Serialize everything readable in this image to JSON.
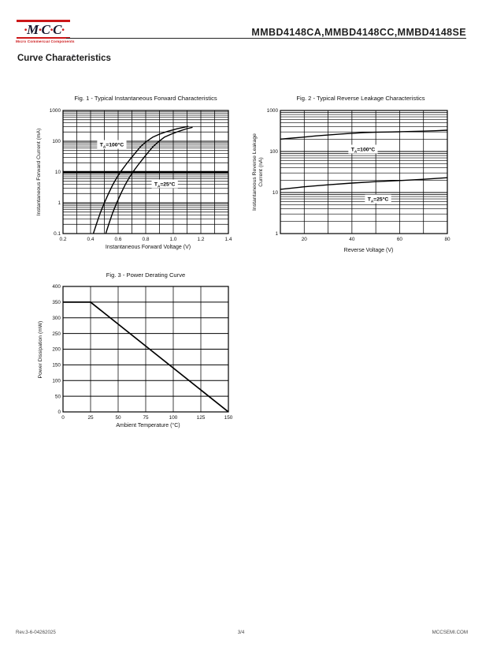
{
  "header": {
    "logo_text": "·M·C·C·",
    "logo_subtitle": "Micro Commercial Components",
    "registered_mark": "®",
    "part_numbers": "MMBD4148CA,MMBD4148CC,MMBD4148SE"
  },
  "section_title": "Curve Characteristics",
  "footer": {
    "revision": "Rev.3-6-04262025",
    "page": "3/4",
    "website": "MCCSEMI.COM"
  },
  "colors": {
    "brand_red": "#cc1719",
    "logo_letters": "#17172e",
    "chart_line": "#000000"
  },
  "chart_data": [
    {
      "id": "fig1",
      "type": "line",
      "title": "Fig. 1 - Typical Instantaneous Forward Characteristics",
      "xlabel": "Instantaneous Forward Voltage (V)",
      "ylabel": "Instantaneous Forward Current (mA)",
      "xscale": "linear",
      "yscale": "log",
      "xlim": [
        0.2,
        1.4
      ],
      "ylim": [
        0.1,
        1000
      ],
      "x_minor_step": 0.1,
      "grid": true,
      "legend_position": "none",
      "xticks": [
        {
          "v": 0.2,
          "label": "0.2"
        },
        {
          "v": 0.4,
          "label": "0.4"
        },
        {
          "v": 0.6,
          "label": "0.6"
        },
        {
          "v": 0.8,
          "label": "0.8"
        },
        {
          "v": 1.0,
          "label": "1.0"
        },
        {
          "v": 1.2,
          "label": "1.2"
        },
        {
          "v": 1.4,
          "label": "1.4"
        }
      ],
      "yticks": [
        {
          "v": 0.1,
          "label": "0.1"
        },
        {
          "v": 1,
          "label": "1"
        },
        {
          "v": 10,
          "label": "10"
        },
        {
          "v": 100,
          "label": "100"
        },
        {
          "v": 1000,
          "label": "1000"
        }
      ],
      "thick_gridlines_y": [
        10
      ],
      "series": [
        {
          "name": "TA=100C",
          "label": {
            "pre": "T",
            "sub": "A",
            "post": "=100°C",
            "fx": 0.295,
            "fy": 0.276
          },
          "points": [
            [
              0.42,
              0.1
            ],
            [
              0.445,
              0.22
            ],
            [
              0.47,
              0.47
            ],
            [
              0.5,
              1.0
            ],
            [
              0.53,
              2.0
            ],
            [
              0.56,
              3.8
            ],
            [
              0.59,
              6.5
            ],
            [
              0.62,
              10.5
            ],
            [
              0.655,
              17
            ],
            [
              0.69,
              27
            ],
            [
              0.725,
              42
            ],
            [
              0.76,
              65
            ],
            [
              0.8,
              95
            ],
            [
              0.85,
              135
            ],
            [
              0.9,
              170
            ],
            [
              0.96,
              210
            ],
            [
              1.03,
              255
            ],
            [
              1.11,
              305
            ]
          ]
        },
        {
          "name": "TA=25C",
          "label": {
            "pre": "T",
            "sub": "A",
            "post": "=25°C",
            "fx": 0.615,
            "fy": 0.596
          },
          "points": [
            [
              0.51,
              0.1
            ],
            [
              0.535,
              0.22
            ],
            [
              0.56,
              0.47
            ],
            [
              0.59,
              1.0
            ],
            [
              0.62,
              2.0
            ],
            [
              0.65,
              3.8
            ],
            [
              0.68,
              6.5
            ],
            [
              0.71,
              10.5
            ],
            [
              0.745,
              17
            ],
            [
              0.78,
              27
            ],
            [
              0.815,
              42
            ],
            [
              0.85,
              65
            ],
            [
              0.89,
              95
            ],
            [
              0.935,
              135
            ],
            [
              0.985,
              170
            ],
            [
              1.04,
              210
            ],
            [
              1.09,
              250
            ],
            [
              1.14,
              285
            ]
          ]
        }
      ]
    },
    {
      "id": "fig2",
      "type": "line",
      "title": "Fig. 2 - Typical Reverse Leakage Characteristics",
      "xlabel": "Reverse Voltage (V)",
      "ylabel": "Instantaneous Reverse Leakage\nCurrent (nA)",
      "xscale": "linear",
      "yscale": "log",
      "xlim": [
        10,
        80
      ],
      "ylim": [
        1,
        1000
      ],
      "x_minor_step": 10,
      "grid": true,
      "legend_position": "none",
      "xticks": [
        {
          "v": 20,
          "label": "20"
        },
        {
          "v": 40,
          "label": "40"
        },
        {
          "v": 60,
          "label": "60"
        },
        {
          "v": 80,
          "label": "80"
        }
      ],
      "yticks": [
        {
          "v": 1,
          "label": "1"
        },
        {
          "v": 10,
          "label": "10"
        },
        {
          "v": 100,
          "label": "100"
        },
        {
          "v": 1000,
          "label": "1000"
        }
      ],
      "thick_gridlines_y": [],
      "series": [
        {
          "name": "TA=100C",
          "label": {
            "pre": "T",
            "sub": "A",
            "post": "=100°C",
            "fx": 0.495,
            "fy": 0.314
          },
          "points": [
            [
              10,
              200
            ],
            [
              15,
              212
            ],
            [
              20,
              225
            ],
            [
              25,
              240
            ],
            [
              30,
              252
            ],
            [
              35,
              266
            ],
            [
              40,
              278
            ],
            [
              45,
              288
            ],
            [
              50,
              294
            ],
            [
              55,
              299
            ],
            [
              60,
              303
            ],
            [
              65,
              308
            ],
            [
              70,
              313
            ],
            [
              75,
              321
            ],
            [
              80,
              330
            ]
          ]
        },
        {
          "name": "TA=25C",
          "label": {
            "pre": "T",
            "sub": "A",
            "post": "=25°C",
            "fx": 0.585,
            "fy": 0.718
          },
          "points": [
            [
              10,
              12
            ],
            [
              20,
              13.8
            ],
            [
              30,
              15.4
            ],
            [
              40,
              17
            ],
            [
              50,
              18.4
            ],
            [
              60,
              19.6
            ],
            [
              70,
              21
            ],
            [
              80,
              23
            ]
          ]
        }
      ]
    },
    {
      "id": "fig3",
      "type": "line",
      "title": "Fig. 3 - Power Derating Curve",
      "xlabel": "Ambient Temperature (°C)",
      "ylabel": "Power Dissipation  (mW)",
      "xscale": "linear",
      "yscale": "linear",
      "xlim": [
        0,
        150
      ],
      "ylim": [
        0,
        400
      ],
      "x_minor_step": 25,
      "y_step": 50,
      "grid": true,
      "legend_position": "none",
      "xticks": [
        {
          "v": 0,
          "label": "0"
        },
        {
          "v": 25,
          "label": "25"
        },
        {
          "v": 50,
          "label": "50"
        },
        {
          "v": 75,
          "label": "75"
        },
        {
          "v": 100,
          "label": "100"
        },
        {
          "v": 125,
          "label": "125"
        },
        {
          "v": 150,
          "label": "150"
        }
      ],
      "yticks": [
        {
          "v": 0,
          "label": "0"
        },
        {
          "v": 50,
          "label": "50"
        },
        {
          "v": 100,
          "label": "100"
        },
        {
          "v": 150,
          "label": "150"
        },
        {
          "v": 200,
          "label": "200"
        },
        {
          "v": 250,
          "label": "250"
        },
        {
          "v": 300,
          "label": "300"
        },
        {
          "v": 350,
          "label": "350"
        },
        {
          "v": 400,
          "label": "400"
        }
      ],
      "thick_gridlines_y": [],
      "series": [
        {
          "name": "derating",
          "width": 1.7,
          "points": [
            [
              0,
              350
            ],
            [
              25,
              350
            ],
            [
              150,
              0
            ]
          ]
        }
      ]
    }
  ]
}
